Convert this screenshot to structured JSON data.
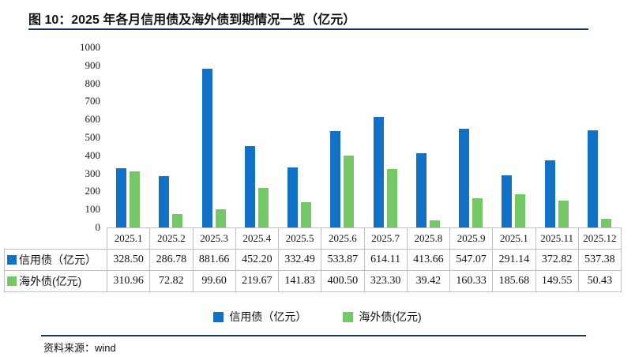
{
  "title": "图 10：2025 年各月信用债及海外债到期情况一览（亿元）",
  "colors": {
    "credit_blue": "#1171C6",
    "overseas_green": "#74C966",
    "divider_navy": "#17365D",
    "table_border": "#BFBFBF"
  },
  "y_axis": {
    "ticks": [
      "1000",
      "900",
      "800",
      "700",
      "600",
      "500",
      "400",
      "300",
      "200",
      "100",
      "0"
    ]
  },
  "chart_data": {
    "type": "bar",
    "title": "图 10：2025 年各月信用债及海外债到期情况一览（亿元）",
    "categories": [
      "2025.1",
      "2025.2",
      "2025.3",
      "2025.4",
      "2025.5",
      "2025.6",
      "2025.7",
      "2025.8",
      "2025.9",
      "2025.1",
      "2025.11",
      "2025.12"
    ],
    "series": [
      {
        "name": "信用债（亿元）",
        "color": "#1171C6",
        "values": [
          328.5,
          286.78,
          881.66,
          452.2,
          332.49,
          533.87,
          614.11,
          413.66,
          547.07,
          291.14,
          372.82,
          537.38
        ]
      },
      {
        "name": "海外债(亿元)",
        "color": "#74C966",
        "values": [
          310.96,
          72.82,
          99.6,
          219.67,
          141.83,
          400.5,
          323.3,
          39.42,
          160.33,
          185.68,
          149.55,
          50.43
        ]
      }
    ],
    "ylim": [
      0,
      1000
    ],
    "ytick_step": 100,
    "grid": false,
    "legend_position": "bottom"
  },
  "table": {
    "rows": [
      {
        "label": "信用债（亿元）",
        "cells": [
          "328.50",
          "286.78",
          "881.66",
          "452.20",
          "332.49",
          "533.87",
          "614.11",
          "413.66",
          "547.07",
          "291.14",
          "372.82",
          "537.38"
        ]
      },
      {
        "label": "海外债(亿元)",
        "cells": [
          "310.96",
          "72.82",
          "99.60",
          "219.67",
          "141.83",
          "400.50",
          "323.30",
          "39.42",
          "160.33",
          "185.68",
          "149.55",
          "50.43"
        ]
      }
    ]
  },
  "legend": {
    "items": [
      {
        "label": "信用债（亿元）"
      },
      {
        "label": "海外债(亿元)"
      }
    ]
  },
  "source": {
    "label": "资料来源：",
    "value": "wind"
  }
}
